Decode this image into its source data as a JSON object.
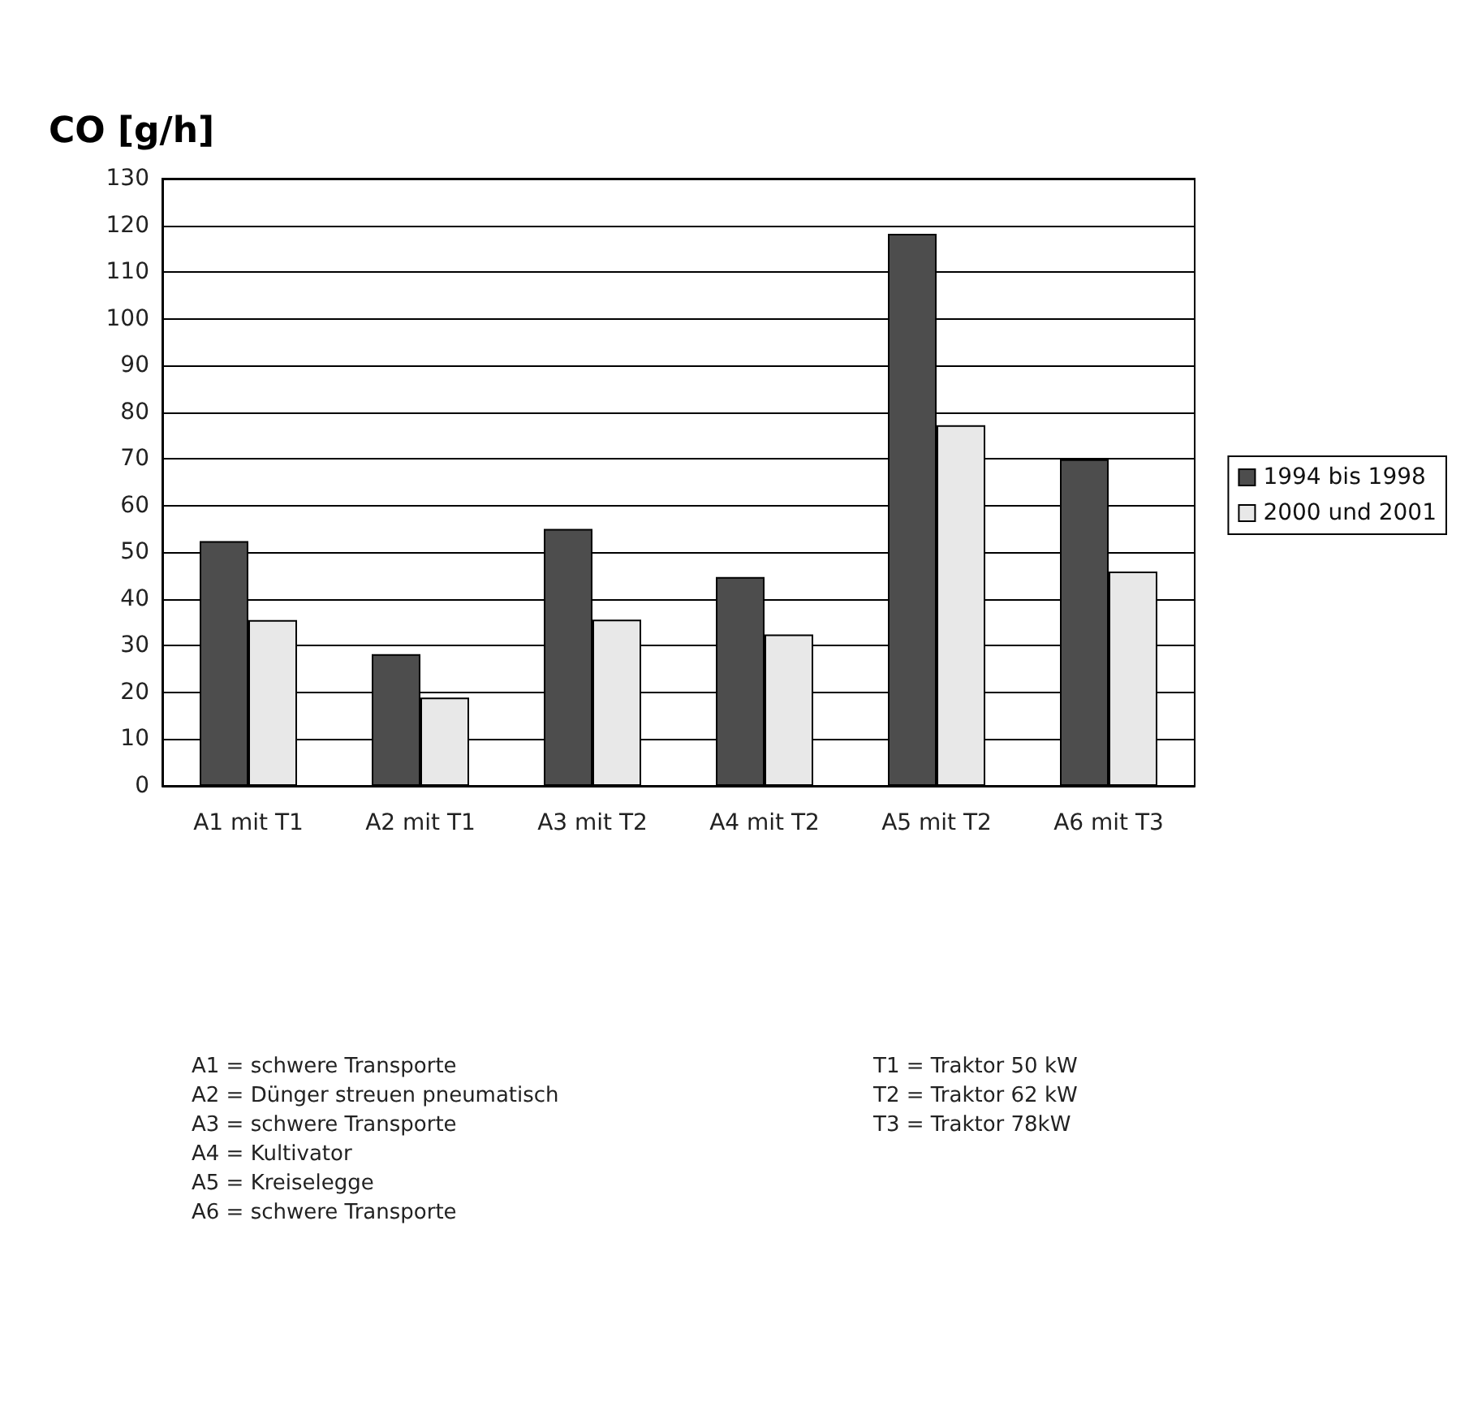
{
  "chart_data": {
    "type": "bar",
    "ylabel": "CO [g/h]",
    "categories": [
      "A1 mit T1",
      "A2 mit T1",
      "A3 mit T2",
      "A4 mit T2",
      "A5 mit T2",
      "A6 mit T3"
    ],
    "series": [
      {
        "name": "1994 bis 1998",
        "color": "#4d4d4d",
        "values": [
          52.4,
          28.2,
          55.0,
          44.7,
          118.2,
          69.9
        ]
      },
      {
        "name": "2000 und 2001",
        "color": "#e8e8e8",
        "values": [
          35.5,
          18.9,
          35.6,
          32.4,
          77.2,
          45.9
        ]
      }
    ],
    "ylim": [
      0,
      130
    ],
    "yticks": [
      0,
      10,
      20,
      30,
      40,
      50,
      60,
      70,
      80,
      90,
      100,
      110,
      120,
      130
    ],
    "grid": "y",
    "legend": "right",
    "annotations": [
      "A1 = schwere Transporte\nA2 = Dünger streuen pneumatisch\nA3 = schwere Transporte\nA4 = Kultivator\nA5 = Kreiselegge\nA6 = schwere Transporte",
      "T1 = Traktor 50 kW\nT2 = Traktor 62 kW\nT3 = Traktor 78kW"
    ]
  }
}
